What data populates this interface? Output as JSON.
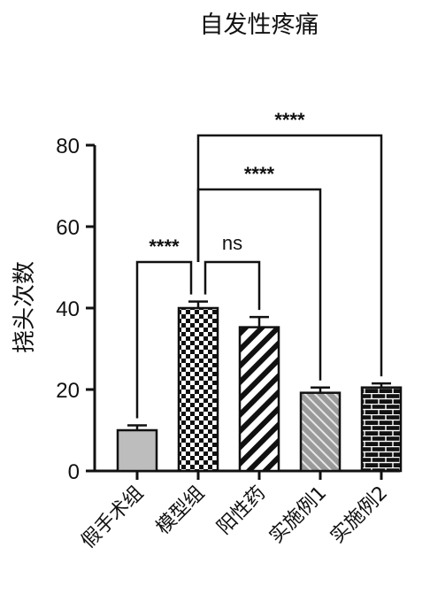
{
  "chart_data": {
    "type": "bar",
    "title": "自发性疼痛",
    "ylabel": "挠头次数",
    "xlabel": "",
    "ylim": [
      0,
      80
    ],
    "yticks": [
      0,
      20,
      40,
      60,
      80
    ],
    "categories": [
      "假手术组",
      "模型组",
      "阳性药",
      "实施例1",
      "实施例2"
    ],
    "values": [
      10,
      40,
      35.3,
      19.2,
      20.5
    ],
    "errors": [
      1.2,
      1.6,
      2.5,
      1.3,
      1.0
    ],
    "fills": [
      "solid-gray",
      "checkerboard",
      "diagonal-stripes",
      "diagonal-hatch-gray",
      "brick"
    ],
    "colors": {
      "bar_gray": "#bdbdbd",
      "ink": "#111111"
    },
    "comparisons": [
      {
        "from": 0,
        "to": 1,
        "label": "****"
      },
      {
        "from": 1,
        "to": 2,
        "label": "ns"
      },
      {
        "from": 1,
        "to": 3,
        "label": "****"
      },
      {
        "from": 1,
        "to": 4,
        "label": "****"
      }
    ]
  }
}
